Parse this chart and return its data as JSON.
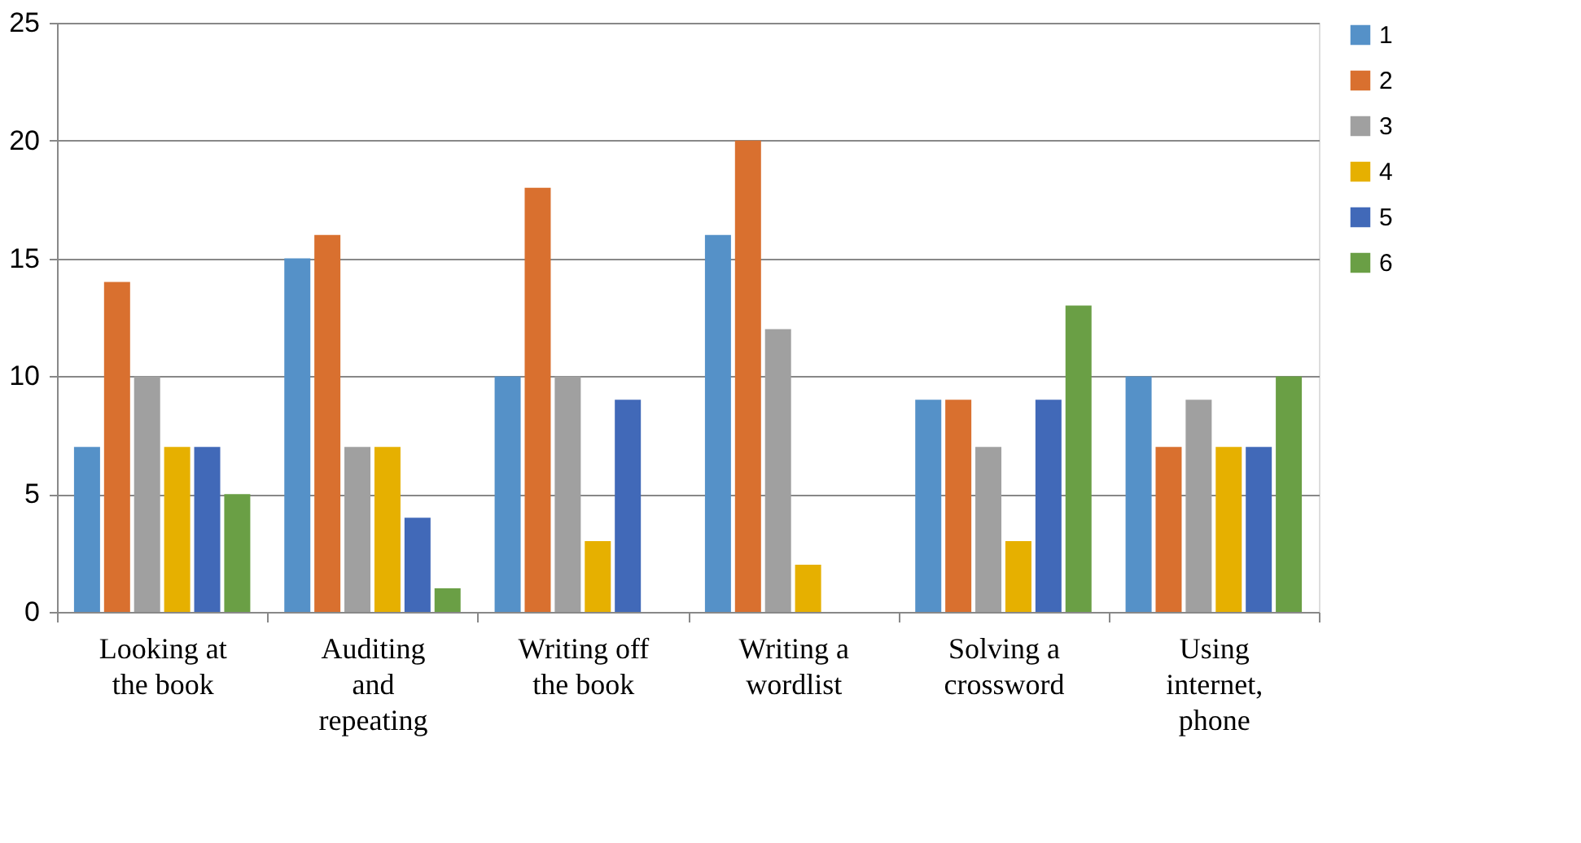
{
  "chart_data": {
    "type": "bar",
    "categories": [
      "Looking at\nthe book",
      "Auditing\nand\nrepeating",
      "Writing off\nthe book",
      "Writing a\nwordlist",
      "Solving a\ncrossword",
      "Using\ninternet,\nphone"
    ],
    "series": [
      {
        "name": "1",
        "color": "#5591c8",
        "values": [
          7,
          15,
          10,
          16,
          9,
          10
        ]
      },
      {
        "name": "2",
        "color": "#d9702f",
        "values": [
          14,
          16,
          18,
          20,
          9,
          7
        ]
      },
      {
        "name": "3",
        "color": "#a0a0a0",
        "values": [
          10,
          7,
          10,
          12,
          7,
          9
        ]
      },
      {
        "name": "4",
        "color": "#e6b000",
        "values": [
          7,
          7,
          3,
          2,
          3,
          7
        ]
      },
      {
        "name": "5",
        "color": "#4169b8",
        "values": [
          7,
          4,
          9,
          0,
          9,
          7
        ]
      },
      {
        "name": "6",
        "color": "#6a9f45",
        "values": [
          5,
          1,
          0,
          0,
          13,
          10
        ]
      }
    ],
    "ylim": [
      0,
      25
    ],
    "yticks": [
      0,
      5,
      10,
      15,
      20,
      25
    ],
    "grid": "y",
    "legend": "right"
  }
}
